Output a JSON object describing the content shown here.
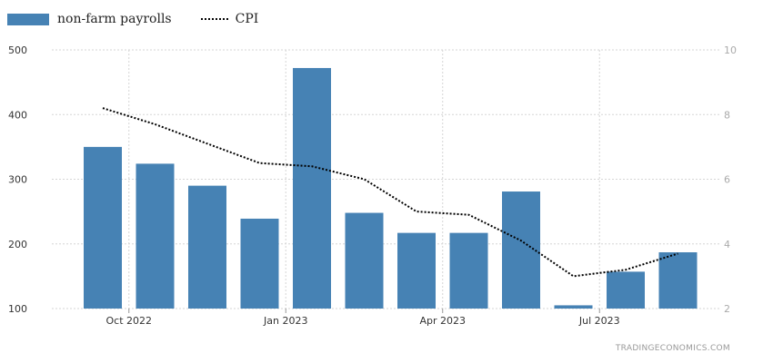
{
  "legend": {
    "series1": "non-farm payrolls",
    "series2": "CPI"
  },
  "watermark": "TRADINGECONOMICS.COM",
  "chart_data": {
    "type": "bar",
    "series": [
      {
        "name": "non-farm payrolls",
        "type": "bar",
        "axis": "left",
        "color": "#4682b4",
        "values": [
          350,
          324,
          290,
          239,
          472,
          248,
          217,
          217,
          281,
          105,
          157,
          187
        ]
      },
      {
        "name": "CPI",
        "type": "line",
        "axis": "right",
        "color": "#000000",
        "line_style": "dotted",
        "values": [
          8.2,
          7.7,
          7.1,
          6.5,
          6.4,
          6.0,
          5.0,
          4.9,
          4.1,
          3.0,
          3.2,
          3.7
        ]
      }
    ],
    "x_tick_labels": [
      "Oct 2022",
      "Jan 2023",
      "Apr 2023",
      "Jul 2023"
    ],
    "x_tick_positions": [
      1,
      4,
      7,
      10
    ],
    "y_left": {
      "lim": [
        100,
        500
      ],
      "ticks": [
        500,
        400,
        300,
        200,
        100
      ]
    },
    "y_right": {
      "lim": [
        2,
        10
      ],
      "ticks": [
        10,
        8,
        6,
        4,
        2
      ]
    },
    "grid": true,
    "legend_position": "top-left"
  }
}
